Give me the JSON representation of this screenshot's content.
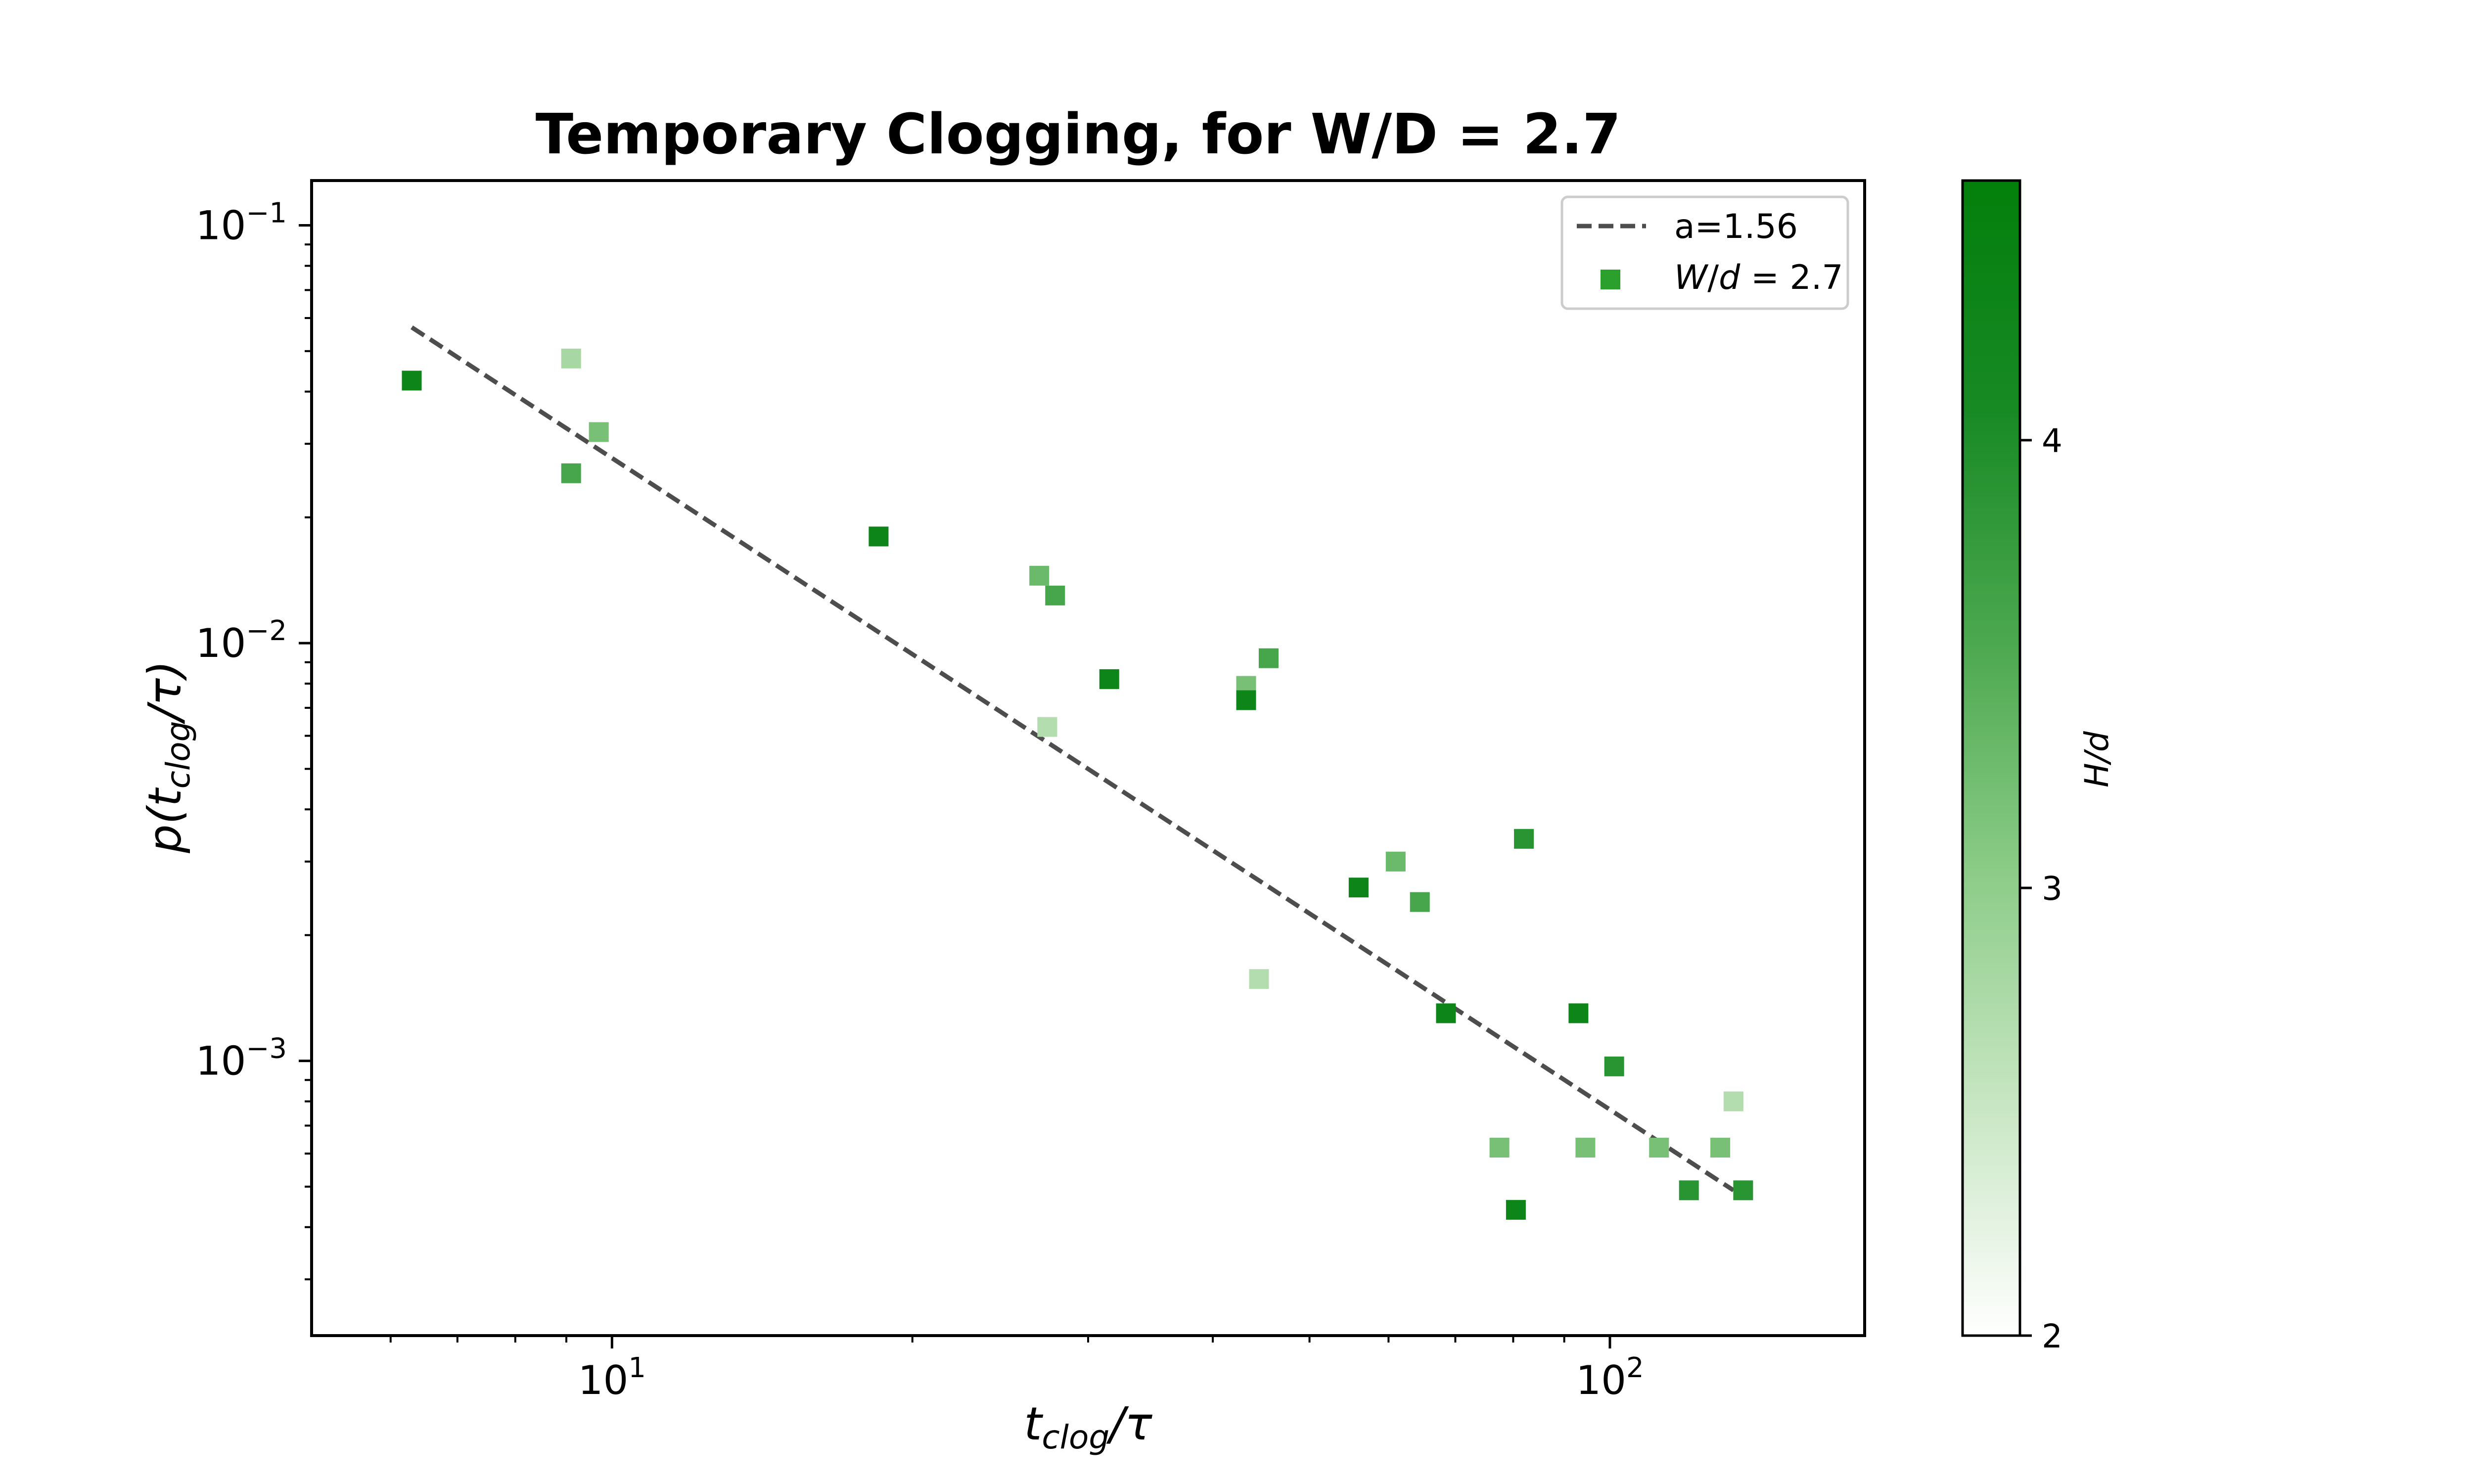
{
  "chart_data": {
    "type": "scatter",
    "title": "Temporary Clogging, for W/D = 2.7",
    "xlabel": "t_clog/τ",
    "ylabel": "p(t_clog/τ)",
    "xscale": "log",
    "yscale": "log",
    "xlim": [
      5.0,
      180.0
    ],
    "ylim": [
      0.00022,
      0.128
    ],
    "xticks": [
      {
        "value": 10,
        "base": "10",
        "exp": "1"
      },
      {
        "value": 100,
        "base": "10",
        "exp": "2"
      }
    ],
    "yticks": [
      {
        "value": 0.1,
        "base": "10",
        "exp": "−1"
      },
      {
        "value": 0.01,
        "base": "10",
        "exp": "−2"
      },
      {
        "value": 0.001,
        "base": "10",
        "exp": "−3"
      }
    ],
    "grid": false,
    "legend_position": "top-right",
    "fit": {
      "label": "a=1.56",
      "slope": -1.56,
      "x": [
        6.3,
        133.0
      ],
      "y": [
        0.057,
        0.00049
      ],
      "color": "#4d4d4d",
      "style": "dashed"
    },
    "series": [
      {
        "name": "W/d = 2.7",
        "legend_color": "#2ca02c",
        "marker": "square",
        "points": [
          {
            "x": 6.3,
            "y": 0.0425,
            "c": 4.3
          },
          {
            "x": 9.1,
            "y": 0.048,
            "c": 2.8
          },
          {
            "x": 9.1,
            "y": 0.0255,
            "c": 3.6
          },
          {
            "x": 9.7,
            "y": 0.032,
            "c": 3.2
          },
          {
            "x": 18.5,
            "y": 0.018,
            "c": 4.3
          },
          {
            "x": 26.8,
            "y": 0.0145,
            "c": 3.3
          },
          {
            "x": 27.3,
            "y": 0.0063,
            "c": 2.7
          },
          {
            "x": 27.8,
            "y": 0.013,
            "c": 3.6
          },
          {
            "x": 31.5,
            "y": 0.0082,
            "c": 4.3
          },
          {
            "x": 43.2,
            "y": 0.0079,
            "c": 3.2
          },
          {
            "x": 43.2,
            "y": 0.0073,
            "c": 4.3
          },
          {
            "x": 44.5,
            "y": 0.00157,
            "c": 2.7
          },
          {
            "x": 45.5,
            "y": 0.0092,
            "c": 3.6
          },
          {
            "x": 56.0,
            "y": 0.0026,
            "c": 4.3
          },
          {
            "x": 61.0,
            "y": 0.003,
            "c": 3.3
          },
          {
            "x": 64.5,
            "y": 0.0024,
            "c": 3.6
          },
          {
            "x": 68.5,
            "y": 0.0013,
            "c": 4.3
          },
          {
            "x": 77.5,
            "y": 0.00062,
            "c": 3.2
          },
          {
            "x": 80.5,
            "y": 0.00044,
            "c": 4.3
          },
          {
            "x": 82.0,
            "y": 0.0034,
            "c": 3.9
          },
          {
            "x": 93.0,
            "y": 0.0013,
            "c": 4.3
          },
          {
            "x": 94.5,
            "y": 0.00062,
            "c": 3.2
          },
          {
            "x": 101.0,
            "y": 0.00097,
            "c": 3.9
          },
          {
            "x": 112.0,
            "y": 0.00062,
            "c": 3.2
          },
          {
            "x": 120.0,
            "y": 0.00049,
            "c": 3.9
          },
          {
            "x": 129.0,
            "y": 0.00062,
            "c": 3.2
          },
          {
            "x": 133.0,
            "y": 0.0008,
            "c": 2.7
          },
          {
            "x": 136.0,
            "y": 0.00049,
            "c": 3.9
          }
        ]
      }
    ],
    "colorbar": {
      "label": "H/d",
      "range": [
        2.0,
        4.58
      ],
      "ticks": [
        "2",
        "3",
        "4"
      ],
      "tick_values": [
        2,
        3,
        4
      ],
      "colormap": [
        "#ffffff",
        "#c8e6c3",
        "#8ccc88",
        "#4ca84f",
        "#188a25",
        "#037f0b"
      ]
    }
  }
}
